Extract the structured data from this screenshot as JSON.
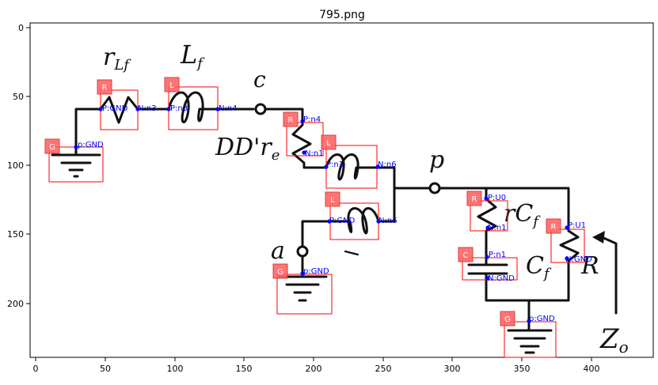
{
  "title": "795.png",
  "axes": {
    "x_ticks": [
      "0",
      "50",
      "100",
      "150",
      "200",
      "250",
      "300",
      "350",
      "400"
    ],
    "y_ticks": [
      "0",
      "50",
      "100",
      "150",
      "200"
    ]
  },
  "colors": {
    "box": "#ff0000",
    "tag_fill": "#ff6666",
    "pin": "#0000ff",
    "wire": "#111111"
  },
  "handwritten": {
    "rlf": "r",
    "rlf_sub": "Lf",
    "lf": "L",
    "lf_sub": "f",
    "c": "c",
    "dd": "DD'r",
    "dd_sub": "e",
    "p": "p",
    "a": "a",
    "rcf": "rC",
    "rcf_sub": "f",
    "cf": "C",
    "cf_sub": "f",
    "r": "R",
    "zo": "Z",
    "zo_sub": "o"
  },
  "components": [
    {
      "tag": "G",
      "pins": [
        "p:GND"
      ]
    },
    {
      "tag": "R",
      "pins": [
        "P:GND",
        "N:n3"
      ]
    },
    {
      "tag": "L",
      "pins": [
        "P:n3",
        "N:n4"
      ]
    },
    {
      "tag": "R",
      "pins": [
        "P:n4",
        "N:n1"
      ]
    },
    {
      "tag": "L",
      "pins": [
        "P:n1",
        "N:n6"
      ]
    },
    {
      "tag": "L",
      "pins": [
        "P:GND",
        "N:n6"
      ]
    },
    {
      "tag": "G",
      "pins": [
        "p:GND"
      ]
    },
    {
      "tag": "R",
      "pins": [
        "P:U0",
        "N:n1"
      ]
    },
    {
      "tag": "C",
      "pins": [
        "P:n1",
        "N:GND"
      ]
    },
    {
      "tag": "R",
      "pins": [
        "P:U1",
        "N:GND"
      ]
    },
    {
      "tag": "G",
      "pins": [
        "p:GND"
      ]
    }
  ]
}
